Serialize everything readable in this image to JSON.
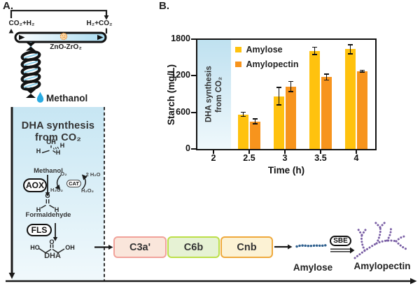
{
  "panel_a": {
    "label": "A.",
    "reactor": {
      "feed_label": "CO₂+H₂",
      "recycle_label": "H₂+CO₂",
      "catalyst_label": "ZnO-ZrO₂",
      "product_label": "Methanol"
    },
    "dha_panel": {
      "title_line1": "DHA synthesis",
      "title_line2": "from CO₂",
      "methanol": {
        "oh": "OH",
        "h_left": "H",
        "h_right": "H",
        "h_stereo": "H",
        "caption": "Methanol"
      },
      "aox": "AOX",
      "cat": "CAT",
      "o2": "O₂",
      "h2o": "2 H₂O",
      "h2o2_left": "H₂O₂",
      "h2o2_right": "H₂O₂",
      "formaldehyde": {
        "o": "O",
        "h_left": "H",
        "h_right": "H",
        "caption": "Formaldehyde"
      },
      "fls": "FLS",
      "dha": {
        "o": "O",
        "ho": "HO",
        "oh": "OH",
        "caption": "DHA"
      }
    },
    "pathway": {
      "modules": [
        {
          "label": "C3a'",
          "fill": "#FAE6DB",
          "border": "#F1A29A"
        },
        {
          "label": "C6b",
          "fill": "#E6F2D4",
          "border": "#BCDF48"
        },
        {
          "label": "Cnb",
          "fill": "#FCF2D4",
          "border": "#EFA93C"
        }
      ],
      "sbe": "SBE",
      "amylose_label": "Amylose",
      "amylopectin_label": "Amylopectin"
    }
  },
  "panel_b": {
    "label": "B."
  },
  "chart_data": {
    "type": "bar",
    "title": "",
    "xlabel": "Time (h)",
    "ylabel": "Starch (mg/L)",
    "x": [
      2,
      2.5,
      3,
      3.5,
      4
    ],
    "xtick_labels": [
      "2",
      "2.5",
      "3",
      "3.5",
      "4"
    ],
    "yticks": [
      "0",
      "600",
      "1200",
      "1800"
    ],
    "ylim": [
      0,
      1800
    ],
    "grid": false,
    "legend_position": "upper-left-inside",
    "series": [
      {
        "name": "Amylose",
        "color": "#FFC20E",
        "values": [
          null,
          570,
          870,
          1620,
          1645
        ],
        "errors": [
          null,
          35,
          145,
          60,
          75
        ]
      },
      {
        "name": "Amylopectin",
        "color": "#F7941D",
        "values": [
          null,
          455,
          1030,
          1185,
          1285
        ],
        "errors": [
          null,
          40,
          85,
          50,
          15
        ]
      }
    ],
    "band": {
      "line1": "DHA synthesis",
      "line2": "from CO₂",
      "x_start": 2,
      "x_end": 2.25
    }
  },
  "colors": {
    "panel_blue_top": "#C7E6F3",
    "panel_blue_bottom": "#F1F9FC",
    "band_blue_top": "#BFE1F0",
    "band_blue_bottom": "#EFF8FC",
    "tube_blue": "#A9DBF0",
    "catalyst_orange": "#E8882B",
    "droplet_blue": "#29ABE2",
    "amylose_chain": "#2E5F8E",
    "amylopectin_tree": "#7A5FA5"
  }
}
